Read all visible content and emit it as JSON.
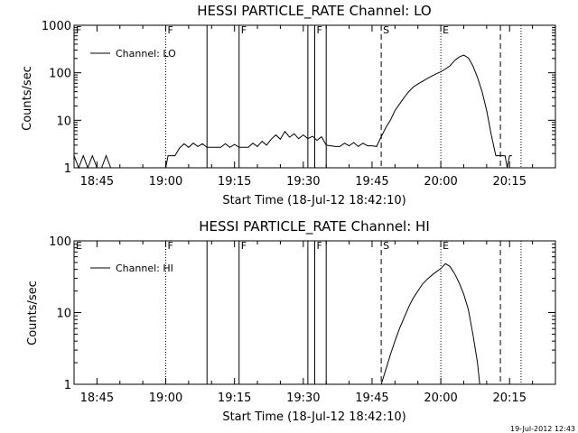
{
  "chart_data": [
    {
      "type": "line",
      "title": "HESSI PARTICLE_RATE Channel: LO",
      "xlabel": "Start Time (18-Jul-12 18:42:10)",
      "ylabel": "Counts/sec",
      "yscale": "log",
      "ylim": [
        1,
        1000
      ],
      "xlim": [
        "18:40",
        "20:25"
      ],
      "x_ticks": [
        "18:45",
        "19:00",
        "19:15",
        "19:30",
        "19:45",
        "20:00",
        "20:15"
      ],
      "y_ticks": [
        "1",
        "10",
        "100",
        "1000"
      ],
      "grid": false,
      "legend": {
        "position": "top-left",
        "entries": [
          "Channel: LO"
        ]
      },
      "markers": [
        {
          "label": "F",
          "time": "18:40",
          "style": "none"
        },
        {
          "label": "F",
          "time": "19:00",
          "style": "dotted"
        },
        {
          "label": "",
          "time": "19:09",
          "style": "solid"
        },
        {
          "label": "F",
          "time": "19:16",
          "style": "solid"
        },
        {
          "label": "",
          "time": "19:31",
          "style": "solid"
        },
        {
          "label": "F",
          "time": "19:32.5",
          "style": "solid"
        },
        {
          "label": "",
          "time": "19:35",
          "style": "solid"
        },
        {
          "label": "S",
          "time": "19:47",
          "style": "dashed"
        },
        {
          "label": "E",
          "time": "20:00",
          "style": "dotted"
        },
        {
          "label": "",
          "time": "20:13",
          "style": "dashed"
        },
        {
          "label": "",
          "time": "20:17.5",
          "style": "dotted"
        }
      ],
      "series": [
        {
          "name": "Channel: LO",
          "points": [
            [
              "18:40",
              1.8
            ],
            [
              "18:41",
              1.0
            ],
            [
              "18:42",
              1.8
            ],
            [
              "18:43",
              1.0
            ],
            [
              "18:44",
              1.8
            ],
            [
              "18:45",
              1.0
            ],
            [
              "18:46",
              1.0
            ],
            [
              "18:47",
              1.8
            ],
            [
              "18:48",
              1.0
            ],
            [
              "19:00",
              1.0
            ],
            [
              "19:00.5",
              1.8
            ],
            [
              "19:02",
              1.8
            ],
            [
              "19:03",
              2.6
            ],
            [
              "19:04",
              3.2
            ],
            [
              "19:05",
              2.7
            ],
            [
              "19:06",
              3.3
            ],
            [
              "19:07",
              2.8
            ],
            [
              "19:08",
              3.2
            ],
            [
              "19:09",
              2.7
            ],
            [
              "19:10",
              2.7
            ],
            [
              "19:12",
              2.7
            ],
            [
              "19:13",
              3.2
            ],
            [
              "19:14",
              2.7
            ],
            [
              "19:15",
              3.1
            ],
            [
              "19:16",
              2.7
            ],
            [
              "19:18",
              2.7
            ],
            [
              "19:19",
              3.3
            ],
            [
              "19:20",
              2.8
            ],
            [
              "19:21",
              3.6
            ],
            [
              "19:22",
              3.0
            ],
            [
              "19:23",
              4.0
            ],
            [
              "19:24",
              4.9
            ],
            [
              "19:25",
              4.0
            ],
            [
              "19:26",
              5.8
            ],
            [
              "19:27",
              4.4
            ],
            [
              "19:28",
              5.2
            ],
            [
              "19:29",
              4.1
            ],
            [
              "19:30",
              4.9
            ],
            [
              "19:31",
              4.1
            ],
            [
              "19:32",
              4.6
            ],
            [
              "19:33",
              3.8
            ],
            [
              "19:34",
              4.5
            ],
            [
              "19:35",
              3.0
            ],
            [
              "19:37",
              2.8
            ],
            [
              "19:38",
              2.8
            ],
            [
              "19:39",
              3.3
            ],
            [
              "19:40",
              2.9
            ],
            [
              "19:41",
              3.4
            ],
            [
              "19:42",
              2.8
            ],
            [
              "19:43",
              3.3
            ],
            [
              "19:44",
              2.9
            ],
            [
              "19:45",
              2.9
            ],
            [
              "19:46",
              2.8
            ],
            [
              "19:47",
              4.5
            ],
            [
              "19:48",
              7.0
            ],
            [
              "19:49",
              10
            ],
            [
              "19:50",
              16
            ],
            [
              "19:51",
              22
            ],
            [
              "19:52",
              30
            ],
            [
              "19:53",
              40
            ],
            [
              "19:54",
              50
            ],
            [
              "19:55",
              58
            ],
            [
              "19:56",
              66
            ],
            [
              "19:57",
              75
            ],
            [
              "19:58",
              85
            ],
            [
              "19:59",
              95
            ],
            [
              "20:00",
              105
            ],
            [
              "20:01",
              120
            ],
            [
              "20:02",
              140
            ],
            [
              "20:03",
              180
            ],
            [
              "20:04",
              215
            ],
            [
              "20:05",
              235
            ],
            [
              "20:06",
              205
            ],
            [
              "20:07",
              140
            ],
            [
              "20:08",
              80
            ],
            [
              "20:09",
              40
            ],
            [
              "20:10",
              16
            ],
            [
              "20:11",
              5
            ],
            [
              "20:12",
              1.8
            ],
            [
              "20:14",
              1.8
            ],
            [
              "20:14.5",
              1.0
            ],
            [
              "20:15",
              1.8
            ],
            [
              "20:15.5",
              1.8
            ]
          ]
        }
      ]
    },
    {
      "type": "line",
      "title": "HESSI PARTICLE_RATE Channel: HI",
      "xlabel": "Start Time (18-Jul-12 18:42:10)",
      "ylabel": "Counts/sec",
      "yscale": "log",
      "ylim": [
        1,
        100
      ],
      "xlim": [
        "18:40",
        "20:25"
      ],
      "x_ticks": [
        "18:45",
        "19:00",
        "19:15",
        "19:30",
        "19:45",
        "20:00",
        "20:15"
      ],
      "y_ticks": [
        "1",
        "10",
        "100"
      ],
      "grid": false,
      "legend": {
        "position": "top-left",
        "entries": [
          "Channel: HI"
        ]
      },
      "markers": [
        {
          "label": "E",
          "time": "18:40",
          "style": "none"
        },
        {
          "label": "F",
          "time": "19:00",
          "style": "dotted"
        },
        {
          "label": "",
          "time": "19:09",
          "style": "solid"
        },
        {
          "label": "F",
          "time": "19:16",
          "style": "solid"
        },
        {
          "label": "",
          "time": "19:31",
          "style": "solid"
        },
        {
          "label": "F",
          "time": "19:32.5",
          "style": "solid"
        },
        {
          "label": "",
          "time": "19:35",
          "style": "solid"
        },
        {
          "label": "S",
          "time": "19:47",
          "style": "dashed"
        },
        {
          "label": "E",
          "time": "20:00",
          "style": "dotted"
        },
        {
          "label": "",
          "time": "20:13",
          "style": "dashed"
        },
        {
          "label": "",
          "time": "20:17.5",
          "style": "dotted"
        }
      ],
      "series": [
        {
          "name": "Channel: HI",
          "points": [
            [
              "19:47",
              1.0
            ],
            [
              "19:48",
              1.6
            ],
            [
              "19:49",
              2.6
            ],
            [
              "19:50",
              4.0
            ],
            [
              "19:51",
              6.0
            ],
            [
              "19:52",
              8.5
            ],
            [
              "19:53",
              12
            ],
            [
              "19:54",
              16
            ],
            [
              "19:55",
              20
            ],
            [
              "19:56",
              25
            ],
            [
              "19:57",
              29
            ],
            [
              "19:58",
              33
            ],
            [
              "19:59",
              37
            ],
            [
              "20:00",
              41
            ],
            [
              "20:01",
              48
            ],
            [
              "20:02",
              44
            ],
            [
              "20:03",
              35
            ],
            [
              "20:04",
              26
            ],
            [
              "20:05",
              18
            ],
            [
              "20:06",
              11
            ],
            [
              "20:07",
              5
            ],
            [
              "20:08",
              2.0
            ],
            [
              "20:08.5",
              1.0
            ]
          ]
        }
      ]
    }
  ],
  "timestamp": "19-Jul-2012 12:43"
}
